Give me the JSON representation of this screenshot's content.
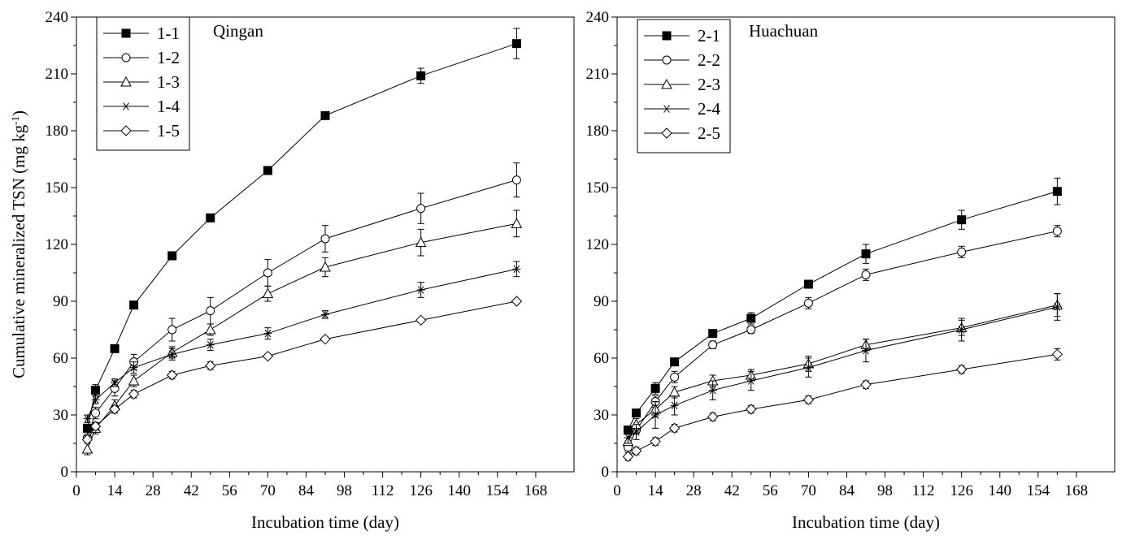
{
  "chart_data": [
    {
      "type": "line",
      "title": "Qingan",
      "xlabel": "Incubation time (day)",
      "ylabel": "Cumulative mineralized TSN (mg kg",
      "ylabel_sup": "-1",
      "ylabel_close": ")",
      "xlim": [
        0,
        182
      ],
      "ylim": [
        0,
        240
      ],
      "xticks": [
        0,
        14,
        28,
        42,
        56,
        70,
        84,
        98,
        112,
        126,
        140,
        154,
        168
      ],
      "yticks": [
        0,
        30,
        60,
        90,
        120,
        150,
        180,
        210,
        240
      ],
      "x": [
        4,
        7,
        14,
        21,
        35,
        49,
        70,
        91,
        126,
        161
      ],
      "grid": false,
      "legend_position": "top-left",
      "series": [
        {
          "name": "1-1",
          "marker": "filled-square",
          "values": [
            23,
            43,
            65,
            88,
            114,
            134,
            159,
            188,
            209,
            226
          ],
          "errors": [
            2,
            3,
            2,
            2,
            1,
            2,
            1,
            1,
            4,
            8
          ]
        },
        {
          "name": "1-2",
          "marker": "open-circle",
          "values": [
            18,
            31,
            44,
            58,
            75,
            85,
            105,
            123,
            139,
            154
          ],
          "errors": [
            3,
            3,
            4,
            4,
            6,
            7,
            7,
            7,
            8,
            9
          ]
        },
        {
          "name": "1-3",
          "marker": "open-triangle",
          "values": [
            12,
            23,
            35,
            48,
            63,
            75,
            94,
            108,
            121,
            131
          ],
          "errors": [
            3,
            3,
            3,
            3,
            3,
            3,
            4,
            5,
            7,
            7
          ]
        },
        {
          "name": "1-4",
          "marker": "asterisk",
          "values": [
            28,
            38,
            47,
            55,
            62,
            67,
            73,
            83,
            96,
            107
          ],
          "errors": [
            2,
            2,
            2,
            3,
            3,
            3,
            3,
            2,
            4,
            4
          ]
        },
        {
          "name": "1-5",
          "marker": "open-diamond",
          "values": [
            17,
            24,
            33,
            41,
            51,
            56,
            61,
            70,
            80,
            90
          ],
          "errors": [
            2,
            2,
            2,
            2,
            2,
            2,
            1,
            1,
            1,
            1
          ]
        }
      ]
    },
    {
      "type": "line",
      "title": "Huachuan",
      "xlabel": "Incubation time (day)",
      "ylabel": "",
      "xlim": [
        0,
        182
      ],
      "ylim": [
        0,
        240
      ],
      "xticks": [
        0,
        14,
        28,
        42,
        56,
        70,
        84,
        98,
        112,
        126,
        140,
        154,
        168
      ],
      "yticks": [
        0,
        30,
        60,
        90,
        120,
        150,
        180,
        210,
        240
      ],
      "x": [
        4,
        7,
        14,
        21,
        35,
        49,
        70,
        91,
        126,
        161
      ],
      "grid": false,
      "legend_position": "top-left",
      "series": [
        {
          "name": "2-1",
          "marker": "filled-square",
          "values": [
            22,
            31,
            44,
            58,
            73,
            81,
            99,
            115,
            133,
            148
          ],
          "errors": [
            2,
            2,
            3,
            2,
            2,
            3,
            2,
            5,
            5,
            7
          ]
        },
        {
          "name": "2-2",
          "marker": "open-circle",
          "values": [
            13,
            22,
            37,
            50,
            67,
            75,
            89,
            104,
            116,
            127
          ],
          "errors": [
            2,
            2,
            3,
            3,
            2,
            2,
            3,
            3,
            3,
            3
          ]
        },
        {
          "name": "2-3",
          "marker": "open-triangle",
          "values": [
            16,
            25,
            33,
            42,
            48,
            51,
            57,
            67,
            76,
            88
          ],
          "errors": [
            2,
            3,
            4,
            3,
            3,
            3,
            4,
            3,
            4,
            6
          ]
        },
        {
          "name": "2-4",
          "marker": "asterisk",
          "values": [
            18,
            21,
            30,
            35,
            43,
            48,
            55,
            64,
            75,
            87
          ],
          "errors": [
            3,
            4,
            7,
            5,
            5,
            5,
            5,
            6,
            6,
            7
          ]
        },
        {
          "name": "2-5",
          "marker": "open-diamond",
          "values": [
            8,
            11,
            16,
            23,
            29,
            33,
            38,
            46,
            54,
            62
          ],
          "errors": [
            2,
            2,
            2,
            2,
            2,
            2,
            2,
            2,
            2,
            3
          ]
        }
      ]
    }
  ]
}
